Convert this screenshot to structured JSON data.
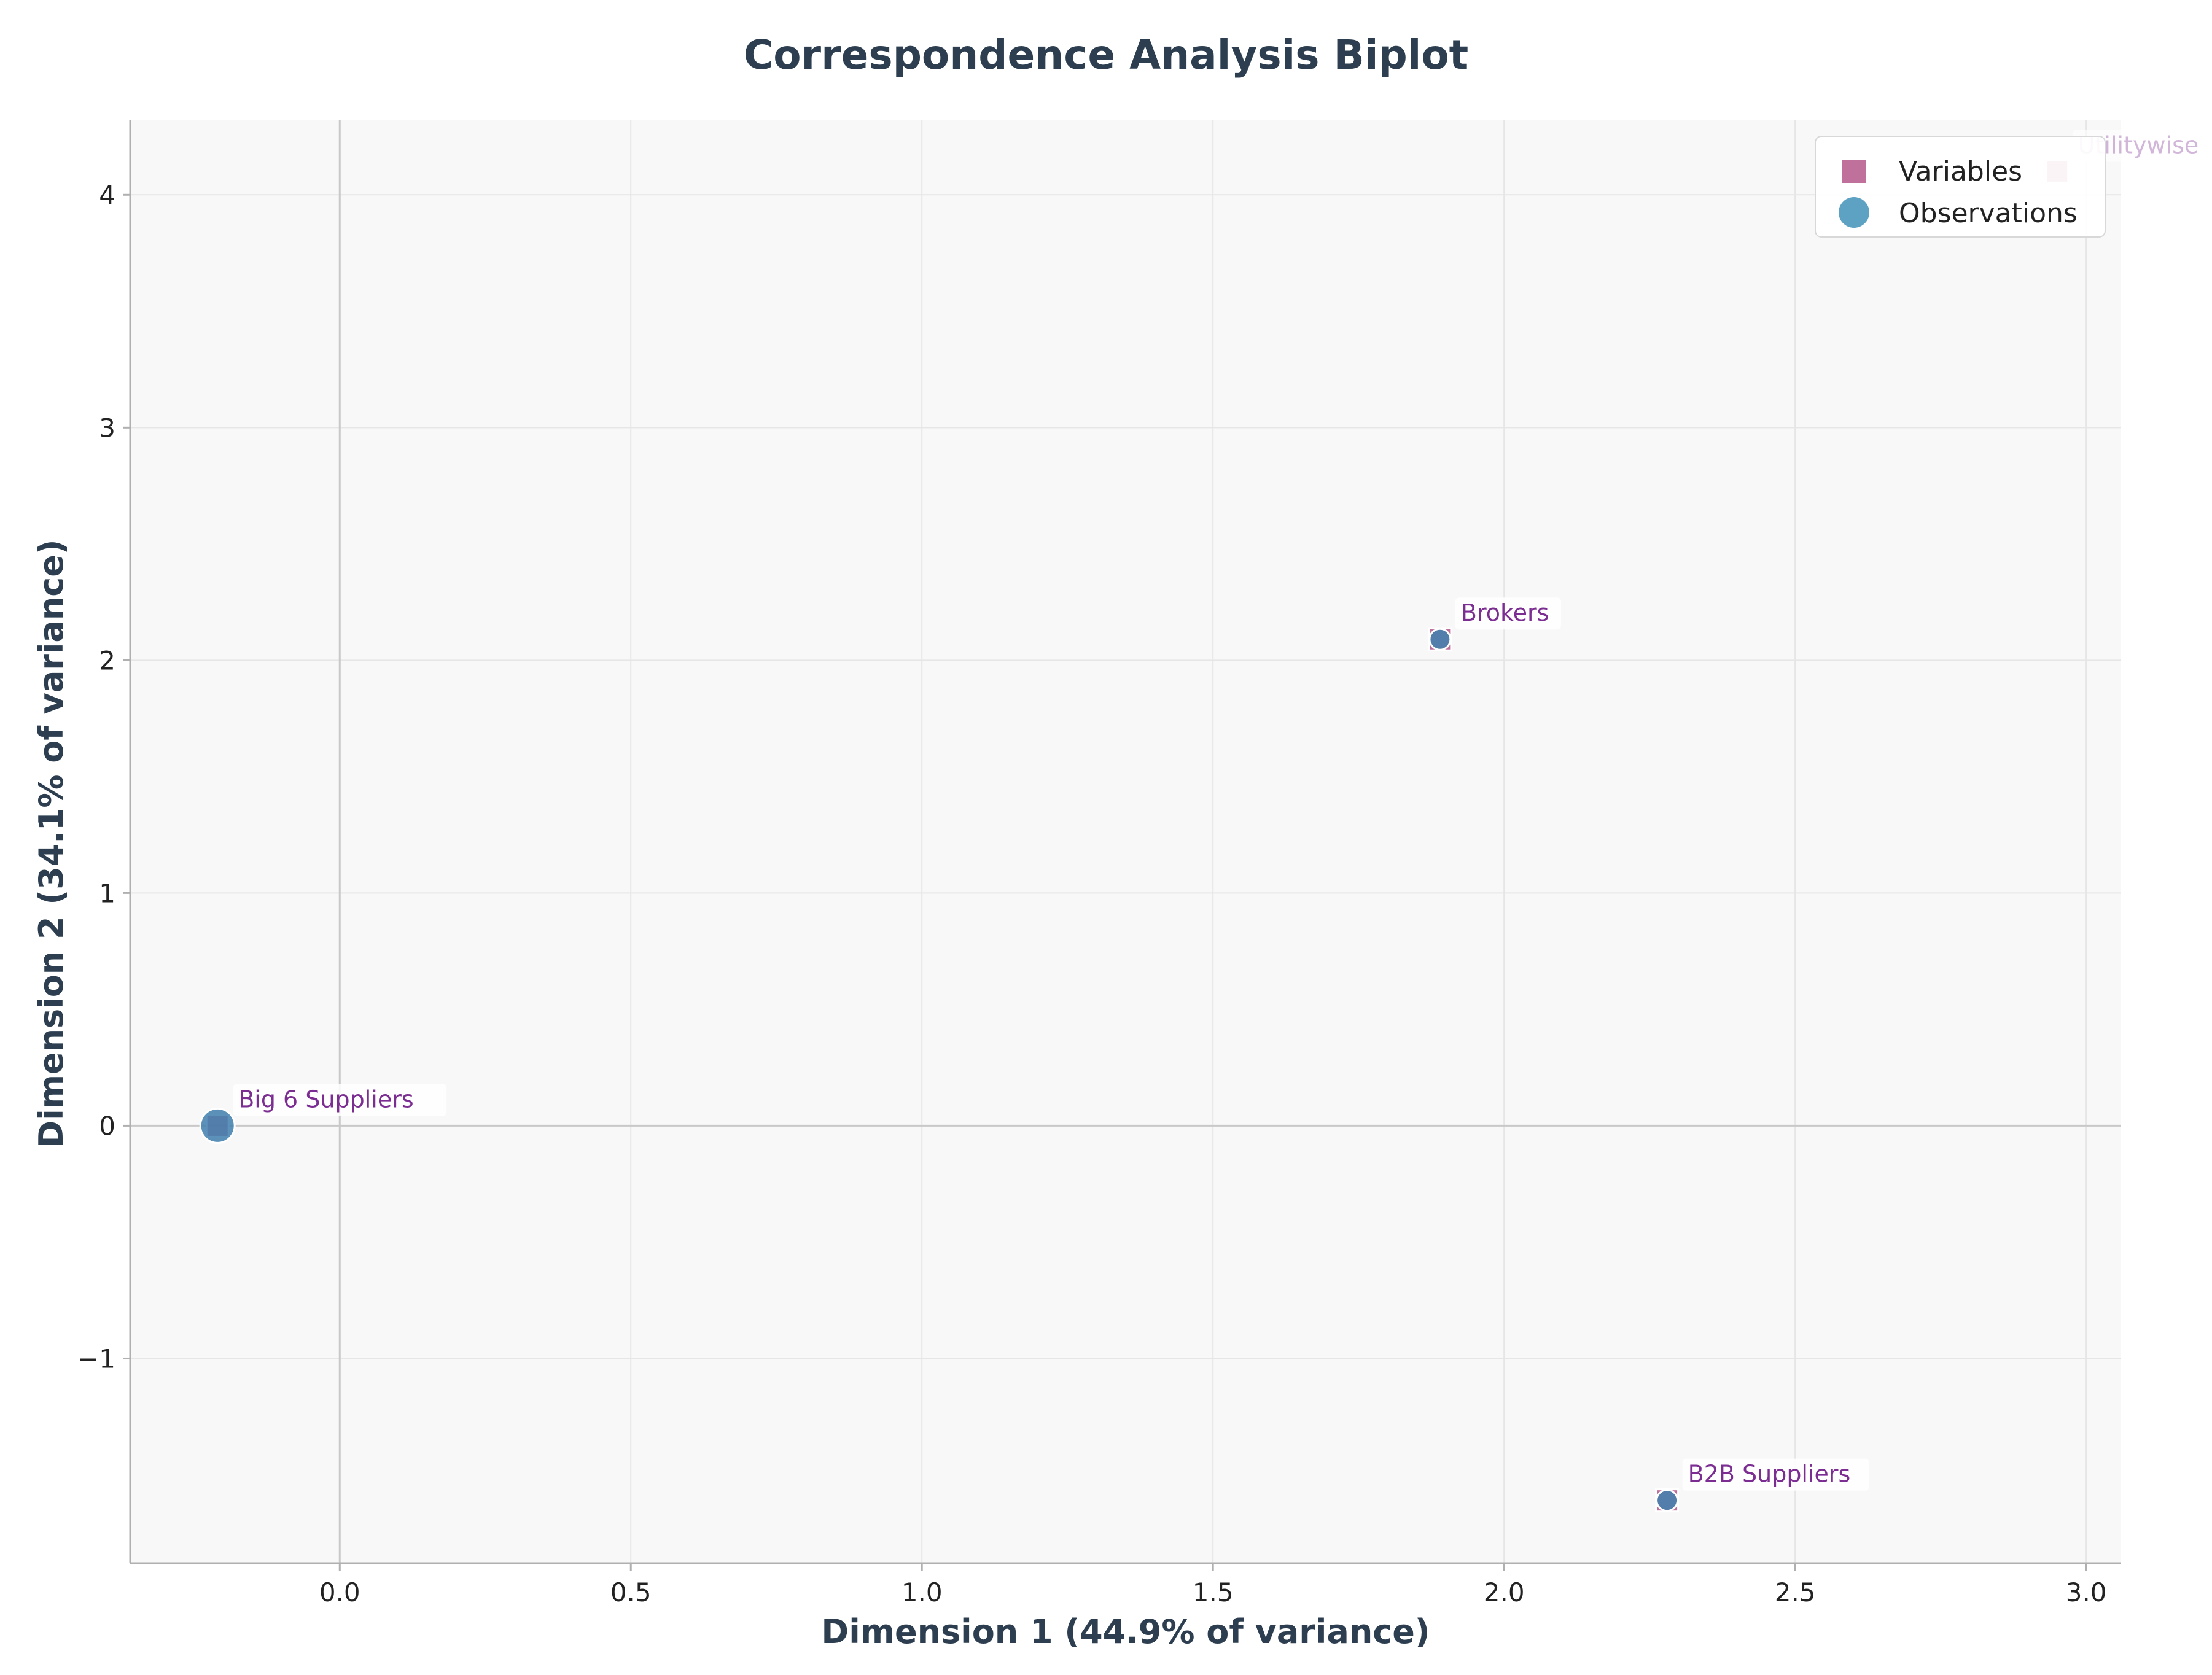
{
  "chart_data": {
    "type": "scatter",
    "title": "Correspondence Analysis Biplot",
    "xlabel": "Dimension 1 (44.9% of variance)",
    "ylabel": "Dimension 2 (34.1% of variance)",
    "xlim": [
      -0.36,
      3.06
    ],
    "ylim": [
      -1.88,
      4.32
    ],
    "x_ticks": [
      0.0,
      0.5,
      1.0,
      1.5,
      2.0,
      2.5,
      3.0
    ],
    "x_tick_labels": [
      "0.0",
      "0.5",
      "1.0",
      "1.5",
      "2.0",
      "2.5",
      "3.0"
    ],
    "y_ticks": [
      -1,
      0,
      1,
      2,
      3,
      4
    ],
    "y_tick_labels": [
      "−1",
      "0",
      "1",
      "2",
      "3",
      "4"
    ],
    "grid": true,
    "reference_lines": {
      "x": 0,
      "y": 0
    },
    "legend": {
      "placement": "top-right",
      "entries": [
        {
          "label": "Variables",
          "marker": "square",
          "color": "#b5588a"
        },
        {
          "label": "Observations",
          "marker": "circle",
          "color": "#4b97bd"
        }
      ]
    },
    "series": [
      {
        "name": "Variables",
        "marker": "square",
        "color": "#b5588a",
        "points": [
          {
            "label": "Big 6 Suppliers",
            "x": -0.21,
            "y": 0.0
          },
          {
            "label": "Brokers",
            "x": 1.89,
            "y": 2.09
          },
          {
            "label": "B2B Suppliers",
            "x": 2.28,
            "y": -1.61
          },
          {
            "label": "Utilitywise",
            "x": 2.95,
            "y": 4.1
          }
        ]
      },
      {
        "name": "Observations",
        "marker": "circle",
        "color": "#3f7fae",
        "points": [
          {
            "x": -0.21,
            "y": 0.0,
            "size": "large"
          },
          {
            "x": 1.89,
            "y": 2.09,
            "size": "small"
          },
          {
            "x": 2.28,
            "y": -1.61,
            "size": "small"
          }
        ]
      }
    ]
  }
}
